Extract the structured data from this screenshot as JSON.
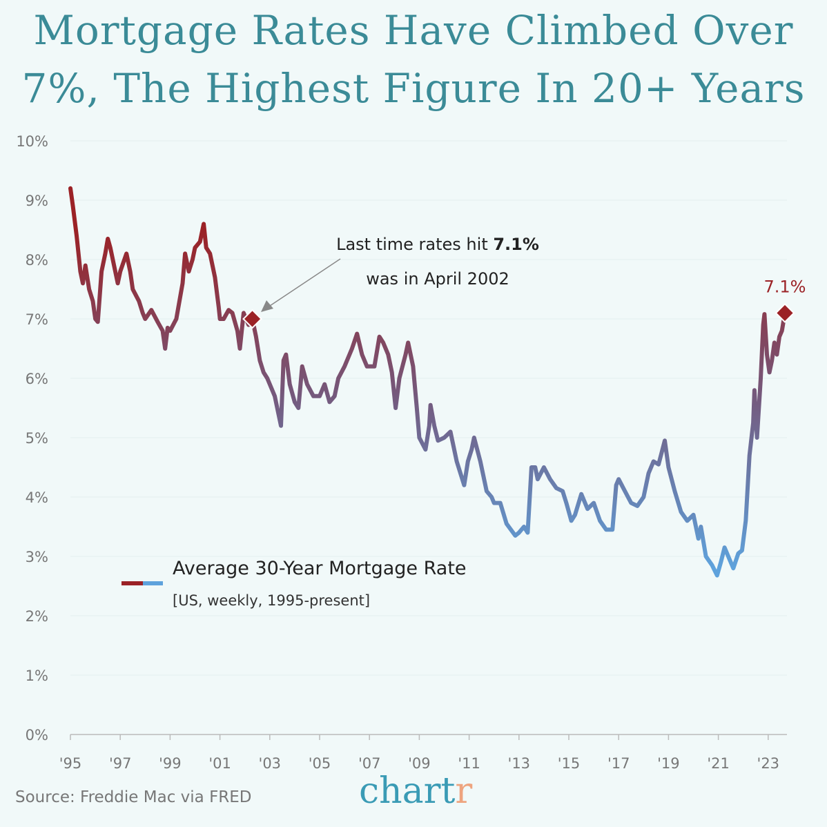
{
  "chart_data": {
    "type": "line",
    "title": "Mortgage Rates Have Climbed Over 7%, The Highest Figure In 20+ Years",
    "title_lines": [
      "Mortgage Rates Have Climbed Over",
      "7%, The Highest Figure In 20+ Years"
    ],
    "xlabel": "",
    "ylabel": "",
    "xlim": [
      1995,
      2023.8
    ],
    "ylim": [
      0,
      10
    ],
    "y_ticks": [
      "0%",
      "1%",
      "2%",
      "3%",
      "4%",
      "5%",
      "6%",
      "7%",
      "8%",
      "9%",
      "10%"
    ],
    "x_ticks": [
      "'95",
      "'97",
      "'99",
      "'01",
      "'03",
      "'05",
      "'07",
      "'09",
      "'11",
      "'13",
      "'15",
      "'17",
      "'19",
      "'21",
      "'23"
    ],
    "x_tick_years": [
      1995,
      1997,
      1999,
      2001,
      2003,
      2005,
      2007,
      2009,
      2011,
      2013,
      2015,
      2017,
      2019,
      2021,
      2023
    ],
    "grid": true,
    "series": [
      {
        "name": "Average 30-Year Mortgage Rate",
        "subtitle": "[US, weekly, 1995-present]",
        "color_high": "#9b2226",
        "color_low": "#5ea2dc",
        "points": [
          [
            1995.0,
            9.2
          ],
          [
            1995.1,
            8.9
          ],
          [
            1995.25,
            8.4
          ],
          [
            1995.4,
            7.8
          ],
          [
            1995.5,
            7.6
          ],
          [
            1995.6,
            7.9
          ],
          [
            1995.75,
            7.5
          ],
          [
            1995.9,
            7.3
          ],
          [
            1996.0,
            7.0
          ],
          [
            1996.1,
            6.95
          ],
          [
            1996.25,
            7.8
          ],
          [
            1996.4,
            8.1
          ],
          [
            1996.5,
            8.35
          ],
          [
            1996.6,
            8.2
          ],
          [
            1996.75,
            7.9
          ],
          [
            1996.9,
            7.6
          ],
          [
            1997.0,
            7.8
          ],
          [
            1997.25,
            8.1
          ],
          [
            1997.4,
            7.8
          ],
          [
            1997.5,
            7.5
          ],
          [
            1997.75,
            7.3
          ],
          [
            1997.9,
            7.1
          ],
          [
            1998.0,
            7.0
          ],
          [
            1998.25,
            7.15
          ],
          [
            1998.5,
            6.95
          ],
          [
            1998.7,
            6.8
          ],
          [
            1998.8,
            6.5
          ],
          [
            1998.9,
            6.85
          ],
          [
            1999.0,
            6.8
          ],
          [
            1999.25,
            7.0
          ],
          [
            1999.5,
            7.6
          ],
          [
            1999.6,
            8.1
          ],
          [
            1999.75,
            7.8
          ],
          [
            1999.9,
            8.0
          ],
          [
            2000.0,
            8.2
          ],
          [
            2000.2,
            8.3
          ],
          [
            2000.35,
            8.6
          ],
          [
            2000.45,
            8.2
          ],
          [
            2000.6,
            8.1
          ],
          [
            2000.8,
            7.7
          ],
          [
            2000.95,
            7.2
          ],
          [
            2001.0,
            7.0
          ],
          [
            2001.15,
            7.0
          ],
          [
            2001.35,
            7.15
          ],
          [
            2001.5,
            7.1
          ],
          [
            2001.7,
            6.8
          ],
          [
            2001.8,
            6.5
          ],
          [
            2001.95,
            7.1
          ],
          [
            2002.15,
            6.9
          ],
          [
            2002.3,
            7.0
          ],
          [
            2002.45,
            6.7
          ],
          [
            2002.6,
            6.3
          ],
          [
            2002.75,
            6.1
          ],
          [
            2002.9,
            6.0
          ],
          [
            2003.0,
            5.9
          ],
          [
            2003.2,
            5.7
          ],
          [
            2003.35,
            5.4
          ],
          [
            2003.45,
            5.2
          ],
          [
            2003.55,
            6.3
          ],
          [
            2003.65,
            6.4
          ],
          [
            2003.8,
            5.9
          ],
          [
            2004.0,
            5.6
          ],
          [
            2004.15,
            5.5
          ],
          [
            2004.3,
            6.2
          ],
          [
            2004.5,
            5.9
          ],
          [
            2004.75,
            5.7
          ],
          [
            2005.0,
            5.7
          ],
          [
            2005.2,
            5.9
          ],
          [
            2005.4,
            5.6
          ],
          [
            2005.6,
            5.7
          ],
          [
            2005.75,
            6.0
          ],
          [
            2006.0,
            6.2
          ],
          [
            2006.3,
            6.5
          ],
          [
            2006.5,
            6.75
          ],
          [
            2006.7,
            6.4
          ],
          [
            2006.9,
            6.2
          ],
          [
            2007.0,
            6.2
          ],
          [
            2007.2,
            6.2
          ],
          [
            2007.4,
            6.7
          ],
          [
            2007.55,
            6.6
          ],
          [
            2007.75,
            6.4
          ],
          [
            2007.9,
            6.1
          ],
          [
            2008.05,
            5.5
          ],
          [
            2008.2,
            6.0
          ],
          [
            2008.45,
            6.4
          ],
          [
            2008.55,
            6.6
          ],
          [
            2008.75,
            6.2
          ],
          [
            2008.9,
            5.5
          ],
          [
            2009.0,
            5.0
          ],
          [
            2009.25,
            4.8
          ],
          [
            2009.4,
            5.2
          ],
          [
            2009.45,
            5.55
          ],
          [
            2009.6,
            5.2
          ],
          [
            2009.75,
            4.95
          ],
          [
            2010.0,
            5.0
          ],
          [
            2010.25,
            5.1
          ],
          [
            2010.5,
            4.6
          ],
          [
            2010.8,
            4.2
          ],
          [
            2010.95,
            4.6
          ],
          [
            2011.1,
            4.8
          ],
          [
            2011.2,
            5.0
          ],
          [
            2011.45,
            4.6
          ],
          [
            2011.7,
            4.1
          ],
          [
            2011.9,
            4.0
          ],
          [
            2012.0,
            3.9
          ],
          [
            2012.25,
            3.9
          ],
          [
            2012.5,
            3.55
          ],
          [
            2012.85,
            3.35
          ],
          [
            2013.0,
            3.4
          ],
          [
            2013.2,
            3.5
          ],
          [
            2013.35,
            3.4
          ],
          [
            2013.5,
            4.5
          ],
          [
            2013.65,
            4.5
          ],
          [
            2013.75,
            4.3
          ],
          [
            2014.0,
            4.5
          ],
          [
            2014.25,
            4.3
          ],
          [
            2014.5,
            4.15
          ],
          [
            2014.75,
            4.1
          ],
          [
            2014.9,
            3.9
          ],
          [
            2015.1,
            3.6
          ],
          [
            2015.25,
            3.7
          ],
          [
            2015.5,
            4.05
          ],
          [
            2015.75,
            3.8
          ],
          [
            2016.0,
            3.9
          ],
          [
            2016.25,
            3.6
          ],
          [
            2016.5,
            3.45
          ],
          [
            2016.75,
            3.45
          ],
          [
            2016.9,
            4.2
          ],
          [
            2017.0,
            4.3
          ],
          [
            2017.25,
            4.1
          ],
          [
            2017.5,
            3.9
          ],
          [
            2017.75,
            3.85
          ],
          [
            2018.0,
            4.0
          ],
          [
            2018.2,
            4.4
          ],
          [
            2018.4,
            4.6
          ],
          [
            2018.6,
            4.55
          ],
          [
            2018.85,
            4.95
          ],
          [
            2019.0,
            4.5
          ],
          [
            2019.25,
            4.1
          ],
          [
            2019.5,
            3.75
          ],
          [
            2019.75,
            3.6
          ],
          [
            2020.0,
            3.7
          ],
          [
            2020.2,
            3.3
          ],
          [
            2020.3,
            3.5
          ],
          [
            2020.5,
            3.0
          ],
          [
            2020.75,
            2.85
          ],
          [
            2020.95,
            2.68
          ],
          [
            2021.1,
            2.9
          ],
          [
            2021.25,
            3.15
          ],
          [
            2021.45,
            2.95
          ],
          [
            2021.6,
            2.8
          ],
          [
            2021.8,
            3.05
          ],
          [
            2021.95,
            3.1
          ],
          [
            2022.1,
            3.6
          ],
          [
            2022.25,
            4.7
          ],
          [
            2022.4,
            5.25
          ],
          [
            2022.45,
            5.8
          ],
          [
            2022.55,
            5.0
          ],
          [
            2022.7,
            6.0
          ],
          [
            2022.8,
            6.9
          ],
          [
            2022.85,
            7.08
          ],
          [
            2022.95,
            6.4
          ],
          [
            2023.05,
            6.1
          ],
          [
            2023.15,
            6.3
          ],
          [
            2023.25,
            6.6
          ],
          [
            2023.35,
            6.4
          ],
          [
            2023.45,
            6.7
          ],
          [
            2023.55,
            6.8
          ],
          [
            2023.67,
            7.1
          ]
        ]
      }
    ],
    "annotations": [
      {
        "text_pre": "Last time rates hit ",
        "text_bold": "7.1%",
        "text_line2": "was in April 2002",
        "x": 2002.3,
        "y": 7.0
      },
      {
        "text": "7.1%",
        "x": 2023.67,
        "y": 7.1,
        "color": "#9b2226"
      }
    ],
    "marker_color": "#9b2226",
    "legend_placement": "lower-left"
  },
  "footer": {
    "source": "Source: Freddie Mac via FRED",
    "logo_main": "chart",
    "logo_end": "r"
  },
  "colors": {
    "title": "#3b8b97",
    "background": "#f1f9f9"
  }
}
